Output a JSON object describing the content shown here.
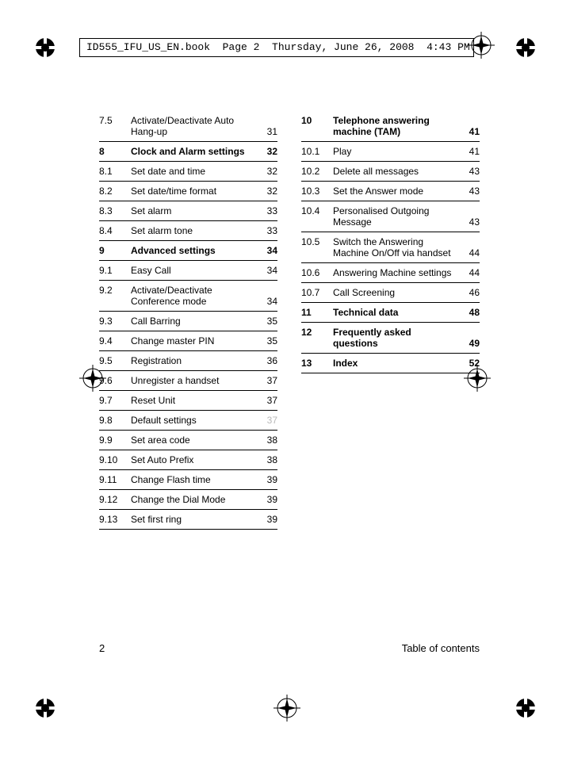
{
  "header_text": "ID555_IFU_US_EN.book  Page 2  Thursday, June 26, 2008  4:43 PM",
  "footer": {
    "page_number": "2",
    "title": "Table of contents"
  },
  "left_col": [
    {
      "num": "7.5",
      "title": "Activate/Deactivate Auto Hang-up",
      "page": "31",
      "bold": false
    },
    {
      "num": "8",
      "title": "Clock and Alarm settings",
      "page": "32",
      "bold": true
    },
    {
      "num": "8.1",
      "title": "Set date and time",
      "page": "32",
      "bold": false
    },
    {
      "num": "8.2",
      "title": "Set date/time format",
      "page": "32",
      "bold": false
    },
    {
      "num": "8.3",
      "title": "Set alarm",
      "page": "33",
      "bold": false
    },
    {
      "num": "8.4",
      "title": "Set alarm tone",
      "page": "33",
      "bold": false
    },
    {
      "num": "9",
      "title": "Advanced settings",
      "page": "34",
      "bold": true
    },
    {
      "num": "9.1",
      "title": "Easy Call",
      "page": "34",
      "bold": false
    },
    {
      "num": "9.2",
      "title": "Activate/Deactivate Conference mode",
      "page": "34",
      "bold": false
    },
    {
      "num": "9.3",
      "title": "Call Barring",
      "page": "35",
      "bold": false
    },
    {
      "num": "9.4",
      "title": "Change master PIN",
      "page": "35",
      "bold": false
    },
    {
      "num": "9.5",
      "title": "Registration",
      "page": "36",
      "bold": false
    },
    {
      "num": "9.6",
      "title": "Unregister a handset",
      "page": "37",
      "bold": false
    },
    {
      "num": "9.7",
      "title": "Reset Unit",
      "page": "37",
      "bold": false
    },
    {
      "num": "9.8",
      "title": "Default settings",
      "page": "37",
      "bold": false,
      "dim": true
    },
    {
      "num": "9.9",
      "title": "Set area code",
      "page": "38",
      "bold": false
    },
    {
      "num": "9.10",
      "title": "Set Auto Prefix",
      "page": "38",
      "bold": false
    },
    {
      "num": "9.11",
      "title": "Change Flash time",
      "page": "39",
      "bold": false
    },
    {
      "num": "9.12",
      "title": "Change the Dial Mode",
      "page": "39",
      "bold": false
    },
    {
      "num": "9.13",
      "title": "Set first ring",
      "page": "39",
      "bold": false
    }
  ],
  "right_col": [
    {
      "num": "10",
      "title": "Telephone answering machine (TAM)",
      "page": "41",
      "bold": true
    },
    {
      "num": "10.1",
      "title": "Play",
      "page": "41",
      "bold": false
    },
    {
      "num": "10.2",
      "title": "Delete all messages",
      "page": "43",
      "bold": false
    },
    {
      "num": "10.3",
      "title": "Set the Answer mode",
      "page": "43",
      "bold": false
    },
    {
      "num": "10.4",
      "title": "Personalised Outgoing Message",
      "page": "43",
      "bold": false
    },
    {
      "num": "10.5",
      "title": "Switch the Answering Machine On/Off via handset",
      "page": "44",
      "bold": false
    },
    {
      "num": "10.6",
      "title": "Answering Machine settings",
      "page": "44",
      "bold": false
    },
    {
      "num": "10.7",
      "title": "Call Screening",
      "page": "46",
      "bold": false
    },
    {
      "num": "11",
      "title": "Technical data",
      "page": "48",
      "bold": true
    },
    {
      "num": "12",
      "title": "Frequently asked questions",
      "page": "49",
      "bold": true
    },
    {
      "num": "13",
      "title": "Index",
      "page": "52",
      "bold": true
    }
  ]
}
